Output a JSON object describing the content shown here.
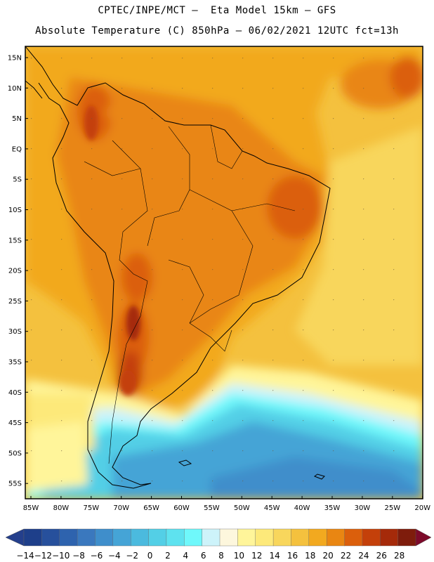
{
  "header": {
    "line1": "CPTEC/INPE/MCT –  Eta Model 15km – GFS",
    "line2": "Absolute Temperature (C) 850hPa – 06/02/2021 12UTC fct=13h"
  },
  "map": {
    "lat_labels": [
      "15N",
      "10N",
      "5N",
      "EQ",
      "5S",
      "10S",
      "15S",
      "20S",
      "25S",
      "30S",
      "35S",
      "40S",
      "45S",
      "50S",
      "55S"
    ],
    "lon_labels": [
      "85W",
      "80W",
      "75W",
      "70W",
      "65W",
      "60W",
      "55W",
      "50W",
      "45W",
      "40W",
      "35W",
      "30W",
      "25W",
      "20W"
    ]
  },
  "colorbar": {
    "labels": [
      "−14",
      "−12",
      "−10",
      "−8",
      "−6",
      "−4",
      "−2",
      "0",
      "2",
      "4",
      "6",
      "8",
      "10",
      "12",
      "14",
      "16",
      "18",
      "20",
      "22",
      "24",
      "26",
      "28"
    ],
    "colors": [
      "#1e3f8a",
      "#27509c",
      "#2e63ae",
      "#3a78be",
      "#3f8ecb",
      "#45a4d6",
      "#4bbade",
      "#53cfe6",
      "#5ee2ef",
      "#6ff8fb",
      "#cdf3fa",
      "#fdf7dd",
      "#fff59a",
      "#fde97a",
      "#f8d65c",
      "#f4c13e",
      "#f2a91f",
      "#e98612",
      "#db5f0c",
      "#c4400a",
      "#a52a0a",
      "#7e1c0c"
    ],
    "end_low_color": "#243f8c",
    "end_high_color": "#7d0a2a"
  }
}
